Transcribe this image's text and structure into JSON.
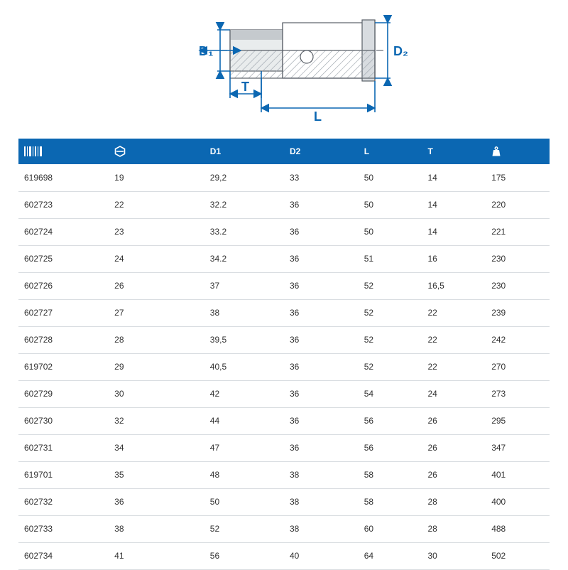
{
  "diagram": {
    "labels": {
      "D1": "D₁",
      "D2": "D₂",
      "T": "T",
      "L": "L"
    },
    "colors": {
      "line": "#0b67b2",
      "text": "#0b67b2",
      "body_light": "#ffffff",
      "body_shade": "#b9c0c6",
      "hatch": "#9da5ac",
      "outline": "#5a6068"
    },
    "stroke_width": 1.6
  },
  "table": {
    "header_bg": "#0b67b2",
    "header_fg": "#ffffff",
    "row_border": "#d9dde1",
    "text_color": "#303030",
    "columns": [
      {
        "key": "code",
        "label_icon": "barcode",
        "text": ""
      },
      {
        "key": "size",
        "label_icon": "hex",
        "text": ""
      },
      {
        "key": "d1",
        "label_icon": null,
        "text": "D1"
      },
      {
        "key": "d2",
        "label_icon": null,
        "text": "D2"
      },
      {
        "key": "l",
        "label_icon": null,
        "text": "L"
      },
      {
        "key": "t",
        "label_icon": null,
        "text": "T"
      },
      {
        "key": "wt",
        "label_icon": "weight",
        "text": ""
      }
    ],
    "rows": [
      [
        "619698",
        "19",
        "29,2",
        "33",
        "50",
        "14",
        "175"
      ],
      [
        "602723",
        "22",
        "32.2",
        "36",
        "50",
        "14",
        "220"
      ],
      [
        "602724",
        "23",
        "33.2",
        "36",
        "50",
        "14",
        "221"
      ],
      [
        "602725",
        "24",
        "34.2",
        "36",
        "51",
        "16",
        "230"
      ],
      [
        "602726",
        "26",
        "37",
        "36",
        "52",
        "16,5",
        "230"
      ],
      [
        "602727",
        "27",
        "38",
        "36",
        "52",
        "22",
        "239"
      ],
      [
        "602728",
        "28",
        "39,5",
        "36",
        "52",
        "22",
        "242"
      ],
      [
        "619702",
        "29",
        "40,5",
        "36",
        "52",
        "22",
        "270"
      ],
      [
        "602729",
        "30",
        "42",
        "36",
        "54",
        "24",
        "273"
      ],
      [
        "602730",
        "32",
        "44",
        "36",
        "56",
        "26",
        "295"
      ],
      [
        "602731",
        "34",
        "47",
        "36",
        "56",
        "26",
        "347"
      ],
      [
        "619701",
        "35",
        "48",
        "38",
        "58",
        "26",
        "401"
      ],
      [
        "602732",
        "36",
        "50",
        "38",
        "58",
        "28",
        "400"
      ],
      [
        "602733",
        "38",
        "52",
        "38",
        "60",
        "28",
        "488"
      ],
      [
        "602734",
        "41",
        "56",
        "40",
        "64",
        "30",
        "502"
      ]
    ]
  }
}
